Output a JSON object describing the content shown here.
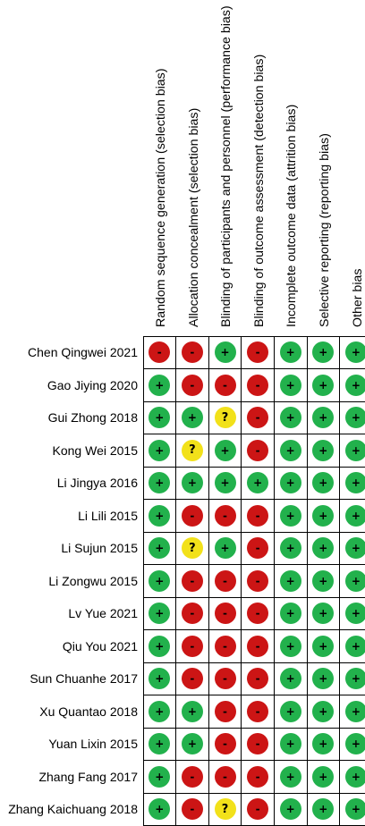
{
  "domains": [
    "Random sequence generation (selection bias)",
    "Allocation concealment (selection bias)",
    "Blinding of participants and personnel (performance bias)",
    "Blinding of outcome assessment (detection bias)",
    "Incomplete outcome data (attrition bias)",
    "Selective reporting (reporting bias)",
    "Other bias"
  ],
  "legend": {
    "low": "+",
    "high": "-",
    "unclear": "?"
  },
  "colors": {
    "low": "#22b14c",
    "high": "#cc1515",
    "unclear": "#f2e11a",
    "grid": "#000000"
  },
  "studies": [
    {
      "name": "Chen Qingwei 2021",
      "ratings": [
        "high",
        "high",
        "low",
        "high",
        "low",
        "low",
        "low"
      ]
    },
    {
      "name": "Gao Jiying 2020",
      "ratings": [
        "low",
        "high",
        "high",
        "high",
        "low",
        "low",
        "low"
      ]
    },
    {
      "name": "Gui Zhong 2018",
      "ratings": [
        "low",
        "low",
        "unclear",
        "high",
        "low",
        "low",
        "low"
      ]
    },
    {
      "name": "Kong Wei 2015",
      "ratings": [
        "low",
        "unclear",
        "low",
        "high",
        "low",
        "low",
        "low"
      ]
    },
    {
      "name": "Li Jingya 2016",
      "ratings": [
        "low",
        "low",
        "low",
        "low",
        "low",
        "low",
        "low"
      ]
    },
    {
      "name": "Li Lili 2015",
      "ratings": [
        "low",
        "high",
        "high",
        "high",
        "low",
        "low",
        "low"
      ]
    },
    {
      "name": "Li Sujun 2015",
      "ratings": [
        "low",
        "unclear",
        "low",
        "high",
        "low",
        "low",
        "low"
      ]
    },
    {
      "name": "Li Zongwu 2015",
      "ratings": [
        "low",
        "high",
        "high",
        "high",
        "low",
        "low",
        "low"
      ]
    },
    {
      "name": "Lv Yue 2021",
      "ratings": [
        "low",
        "high",
        "high",
        "high",
        "low",
        "low",
        "low"
      ]
    },
    {
      "name": "Qiu You 2021",
      "ratings": [
        "low",
        "high",
        "high",
        "high",
        "low",
        "low",
        "low"
      ]
    },
    {
      "name": "Sun Chuanhe 2017",
      "ratings": [
        "low",
        "high",
        "high",
        "high",
        "low",
        "low",
        "low"
      ]
    },
    {
      "name": "Xu Quantao 2018",
      "ratings": [
        "low",
        "low",
        "high",
        "high",
        "low",
        "low",
        "low"
      ]
    },
    {
      "name": "Yuan Lixin 2015",
      "ratings": [
        "low",
        "low",
        "high",
        "high",
        "low",
        "low",
        "low"
      ]
    },
    {
      "name": "Zhang Fang 2017",
      "ratings": [
        "low",
        "high",
        "high",
        "high",
        "low",
        "low",
        "low"
      ]
    },
    {
      "name": "Zhang Kaichuang 2018",
      "ratings": [
        "low",
        "high",
        "unclear",
        "high",
        "low",
        "low",
        "low"
      ]
    }
  ]
}
